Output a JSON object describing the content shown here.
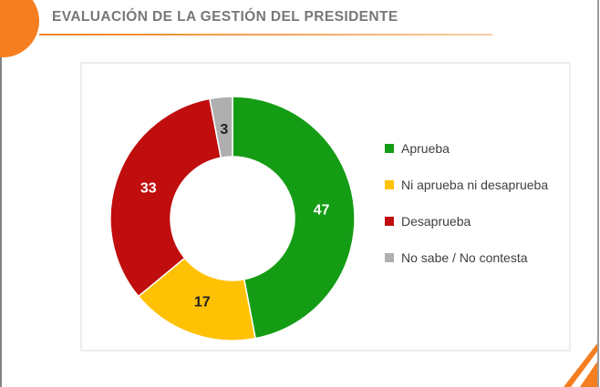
{
  "header": {
    "title": "EVALUACIÓN DE LA GESTIÓN DEL PRESIDENTE"
  },
  "decor": {
    "accent_color": "#F57E20",
    "title_color": "#77787B",
    "edge_line_left_color": "#828282",
    "edge_line_right_color": "#9C9C9C",
    "panel_border_color": "#EDEDED"
  },
  "chart_data": {
    "type": "pie",
    "subtype": "donut",
    "title": "EVALUACIÓN DE LA GESTIÓN DEL PRESIDENTE",
    "unit": "percent",
    "categories": [
      "Aprueba",
      "Ni aprueba ni desaprueba",
      "Desaprueba",
      "No sabe / No contesta"
    ],
    "values": [
      47,
      17,
      33,
      3
    ],
    "colors": [
      "#149C14",
      "#FFC103",
      "#C00D0D",
      "#AFAFB0"
    ],
    "label_colors": [
      "#FFFFFF",
      "#1F1F1F",
      "#FFFFFF",
      "#1F1F1F"
    ],
    "start_angle_deg": 0,
    "direction": "clockwise",
    "legend_position": "right",
    "legend_text_color": "#3F3F3F",
    "grid": false
  }
}
